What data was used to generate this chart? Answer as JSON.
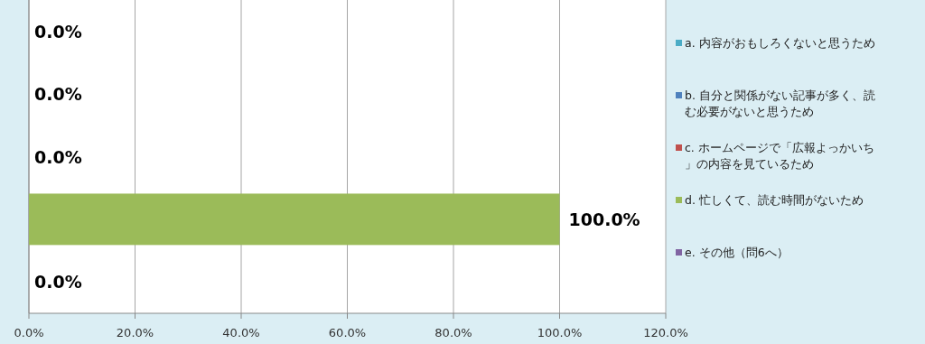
{
  "chart_data": {
    "type": "bar",
    "orientation": "horizontal",
    "categories": [
      null,
      null,
      null,
      null,
      null
    ],
    "series": [
      {
        "name": "a. 内容がおもしろくないと思うため",
        "color": "#4bacc6",
        "values": [
          0,
          null,
          null,
          null,
          null
        ],
        "value_labels": [
          "0.0%",
          null,
          null,
          null,
          null
        ]
      },
      {
        "name": "b. 自分と関係がない記事が多く、読む必要がないと思うため",
        "color": "#4f81bd",
        "values": [
          null,
          0,
          null,
          null,
          null
        ],
        "value_labels": [
          null,
          "0.0%",
          null,
          null,
          null
        ]
      },
      {
        "name": "c. ホームページで「広報よっかいち」の内容を見ているため",
        "color": "#c0504d",
        "values": [
          null,
          null,
          0,
          null,
          null
        ],
        "value_labels": [
          null,
          null,
          "0.0%",
          null,
          null
        ]
      },
      {
        "name": "d. 忙しくて、読む時間がないため",
        "color": "#9bbb59",
        "values": [
          null,
          null,
          null,
          100,
          null
        ],
        "value_labels": [
          null,
          null,
          null,
          "100.0%",
          null
        ]
      },
      {
        "name": "e. その他（問6へ）",
        "color": "#8064a2",
        "values": [
          null,
          null,
          null,
          null,
          0
        ],
        "value_labels": [
          null,
          null,
          null,
          null,
          "0.0%"
        ]
      }
    ],
    "xlim": [
      0,
      120
    ],
    "xticks": [
      {
        "value": 0,
        "label": "0.0%"
      },
      {
        "value": 20,
        "label": "20.0%"
      },
      {
        "value": 40,
        "label": "40.0%"
      },
      {
        "value": 60,
        "label": "60.0%"
      },
      {
        "value": 80,
        "label": "80.0%"
      },
      {
        "value": 100,
        "label": "100.0%"
      },
      {
        "value": 120,
        "label": "120.0%"
      }
    ],
    "grid": "x",
    "legend": "right",
    "tick_labels": "x"
  }
}
